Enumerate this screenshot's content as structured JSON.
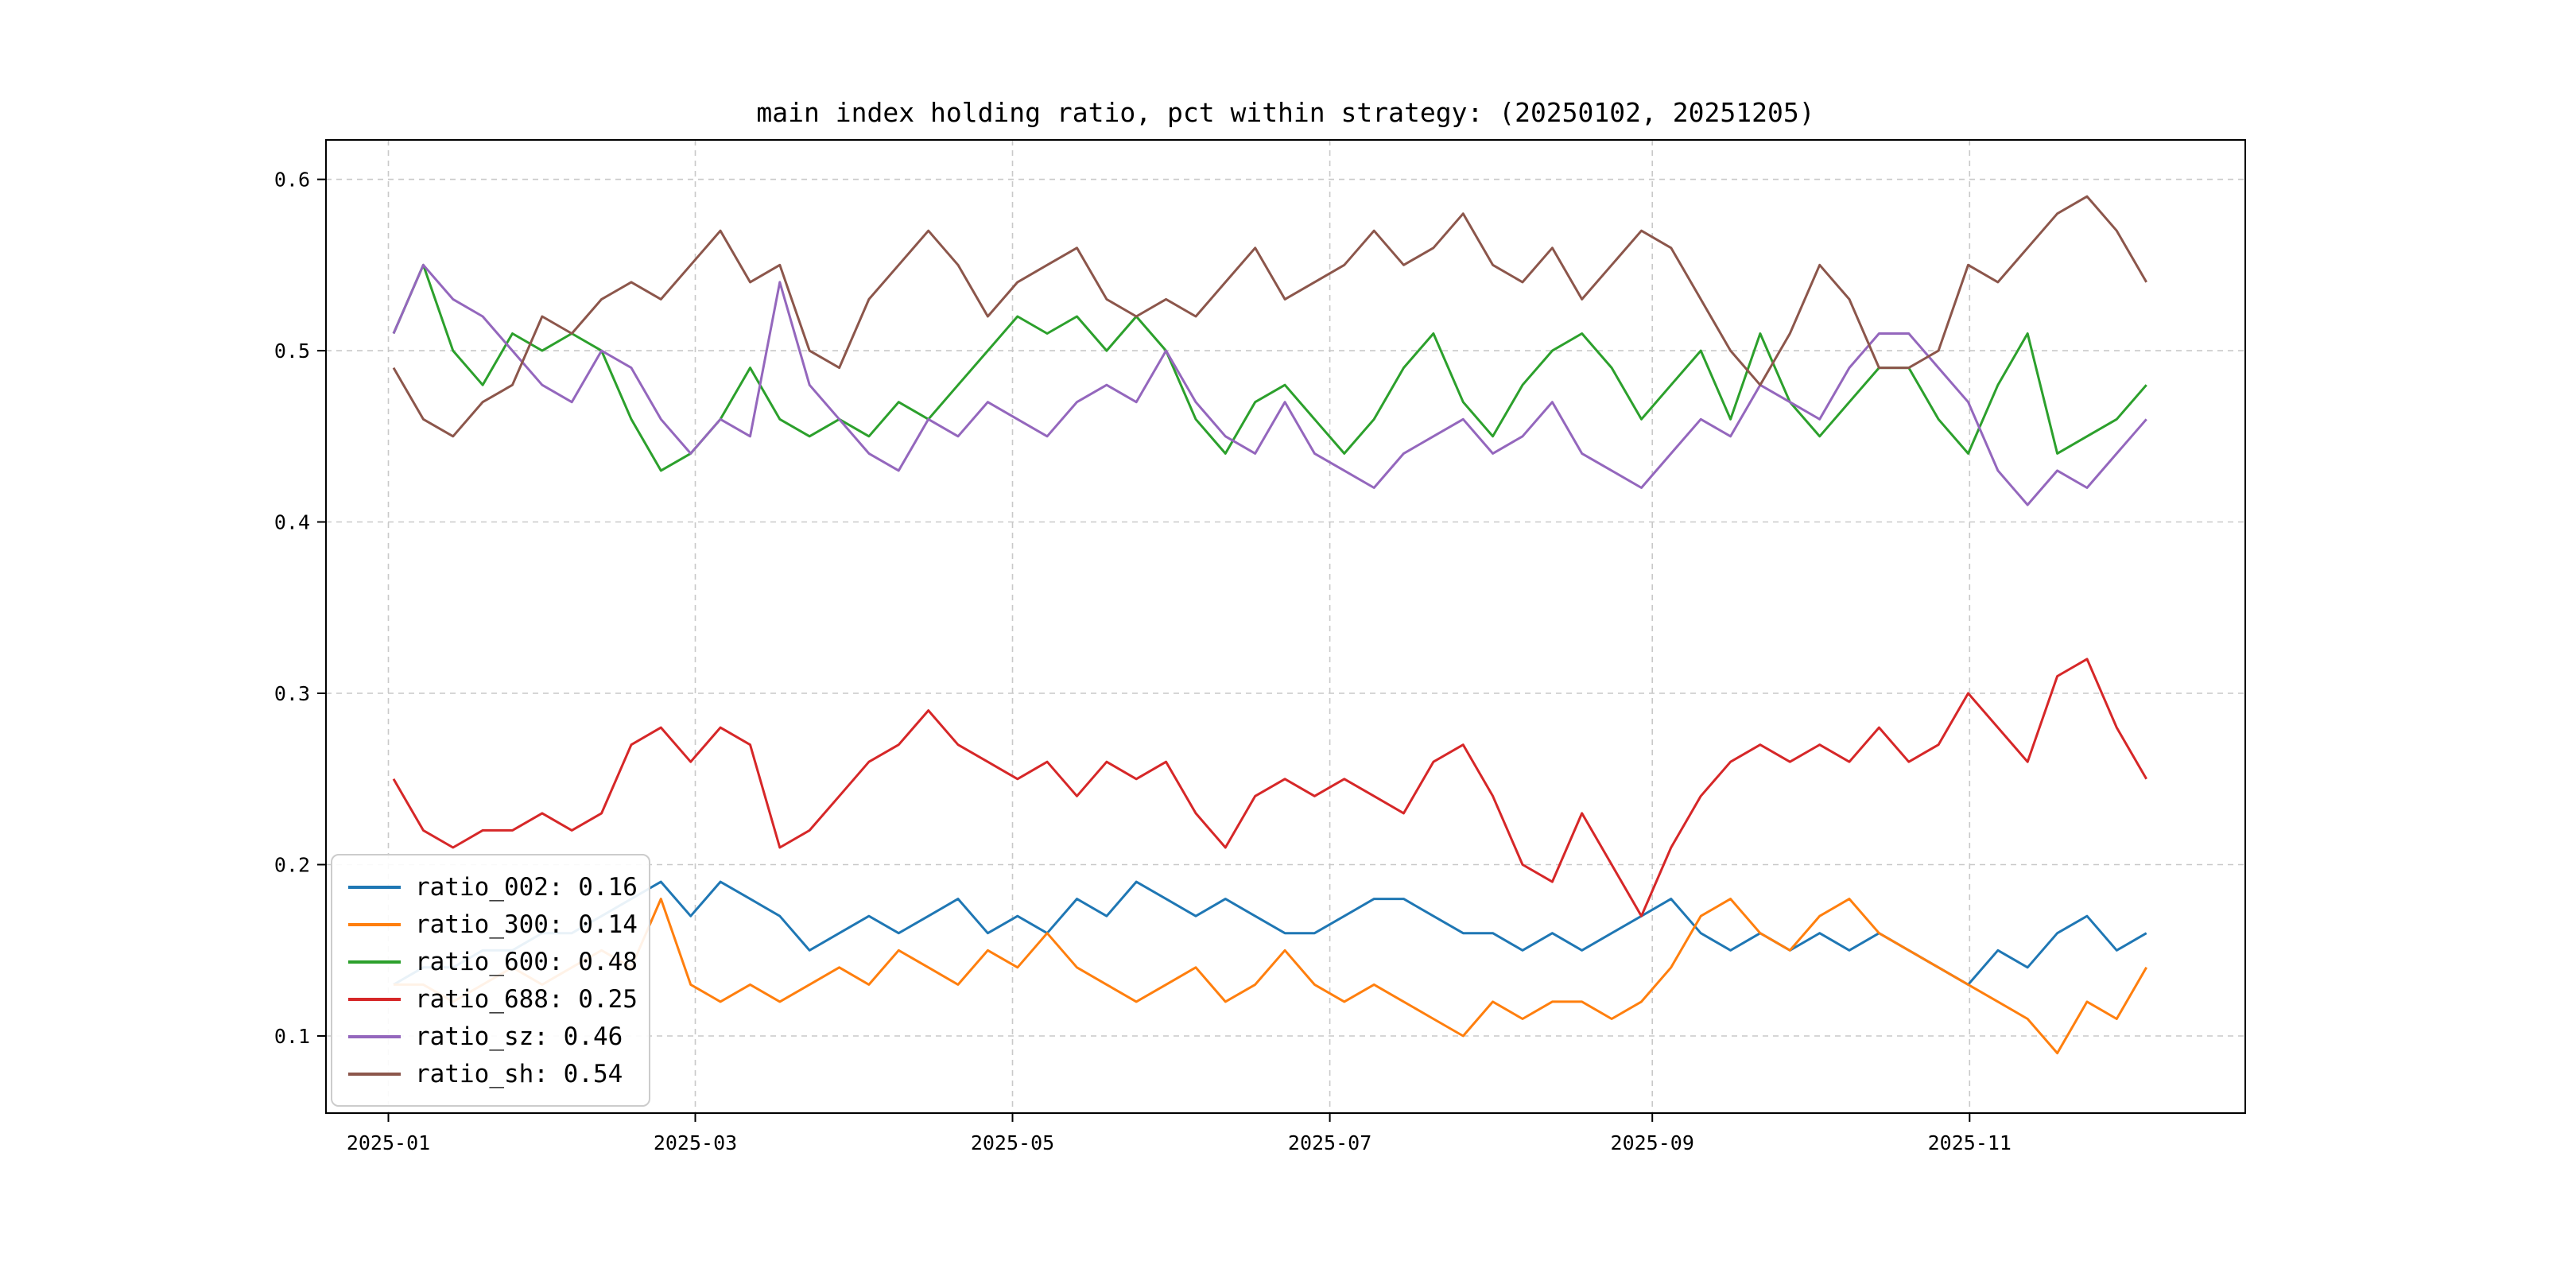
{
  "chart": {
    "title": "main index holding ratio, pct within strategy: (20250102, 20251205)"
  },
  "chart_data": {
    "type": "line",
    "title": "main index holding ratio, pct within strategy: (20250102, 20251205)",
    "xlabel": "",
    "ylabel": "",
    "grid": true,
    "legend_position": "lower left",
    "xlim": [
      -12,
      357
    ],
    "ylim": [
      0.055,
      0.623
    ],
    "x_range_days": [
      1,
      338
    ],
    "x_ticks": [
      {
        "label": "2025-01",
        "day": 0
      },
      {
        "label": "2025-03",
        "day": 59
      },
      {
        "label": "2025-05",
        "day": 120
      },
      {
        "label": "2025-07",
        "day": 181
      },
      {
        "label": "2025-09",
        "day": 243
      },
      {
        "label": "2025-11",
        "day": 304
      }
    ],
    "y_ticks": [
      {
        "label": "0.1",
        "value": 0.1
      },
      {
        "label": "0.2",
        "value": 0.2
      },
      {
        "label": "0.3",
        "value": 0.3
      },
      {
        "label": "0.4",
        "value": 0.4
      },
      {
        "label": "0.5",
        "value": 0.5
      },
      {
        "label": "0.6",
        "value": 0.6
      }
    ],
    "series": [
      {
        "name": "ratio_002",
        "color": "#1f77b4",
        "legend_label": "ratio_002: 0.16",
        "last_value": 0.16,
        "values": [
          0.13,
          0.14,
          0.14,
          0.15,
          0.15,
          0.16,
          0.16,
          0.17,
          0.18,
          0.19,
          0.17,
          0.19,
          0.18,
          0.17,
          0.15,
          0.16,
          0.17,
          0.16,
          0.17,
          0.18,
          0.16,
          0.17,
          0.16,
          0.18,
          0.17,
          0.19,
          0.18,
          0.17,
          0.18,
          0.17,
          0.16,
          0.16,
          0.17,
          0.18,
          0.18,
          0.17,
          0.16,
          0.16,
          0.15,
          0.16,
          0.15,
          0.16,
          0.17,
          0.18,
          0.16,
          0.15,
          0.16,
          0.15,
          0.16,
          0.15,
          0.16,
          0.15,
          0.14,
          0.13,
          0.15,
          0.14,
          0.16,
          0.17,
          0.15,
          0.16
        ]
      },
      {
        "name": "ratio_300",
        "color": "#ff7f0e",
        "legend_label": "ratio_300: 0.14",
        "last_value": 0.14,
        "values": [
          0.13,
          0.13,
          0.12,
          0.13,
          0.14,
          0.13,
          0.14,
          0.15,
          0.14,
          0.18,
          0.13,
          0.12,
          0.13,
          0.12,
          0.13,
          0.14,
          0.13,
          0.15,
          0.14,
          0.13,
          0.15,
          0.14,
          0.16,
          0.14,
          0.13,
          0.12,
          0.13,
          0.14,
          0.12,
          0.13,
          0.15,
          0.13,
          0.12,
          0.13,
          0.12,
          0.11,
          0.1,
          0.12,
          0.11,
          0.12,
          0.12,
          0.11,
          0.12,
          0.14,
          0.17,
          0.18,
          0.16,
          0.15,
          0.17,
          0.18,
          0.16,
          0.15,
          0.14,
          0.13,
          0.12,
          0.11,
          0.09,
          0.12,
          0.11,
          0.14
        ]
      },
      {
        "name": "ratio_600",
        "color": "#2ca02c",
        "legend_label": "ratio_600: 0.48",
        "last_value": 0.48,
        "values": [
          0.51,
          0.55,
          0.5,
          0.48,
          0.51,
          0.5,
          0.51,
          0.5,
          0.46,
          0.43,
          0.44,
          0.46,
          0.49,
          0.46,
          0.45,
          0.46,
          0.45,
          0.47,
          0.46,
          0.48,
          0.5,
          0.52,
          0.51,
          0.52,
          0.5,
          0.52,
          0.5,
          0.46,
          0.44,
          0.47,
          0.48,
          0.46,
          0.44,
          0.46,
          0.49,
          0.51,
          0.47,
          0.45,
          0.48,
          0.5,
          0.51,
          0.49,
          0.46,
          0.48,
          0.5,
          0.46,
          0.51,
          0.47,
          0.45,
          0.47,
          0.49,
          0.49,
          0.46,
          0.44,
          0.48,
          0.51,
          0.44,
          0.45,
          0.46,
          0.48
        ]
      },
      {
        "name": "ratio_688",
        "color": "#d62728",
        "legend_label": "ratio_688: 0.25",
        "last_value": 0.25,
        "values": [
          0.25,
          0.22,
          0.21,
          0.22,
          0.22,
          0.23,
          0.22,
          0.23,
          0.27,
          0.28,
          0.26,
          0.28,
          0.27,
          0.21,
          0.22,
          0.24,
          0.26,
          0.27,
          0.29,
          0.27,
          0.26,
          0.25,
          0.26,
          0.24,
          0.26,
          0.25,
          0.26,
          0.23,
          0.21,
          0.24,
          0.25,
          0.24,
          0.25,
          0.24,
          0.23,
          0.26,
          0.27,
          0.24,
          0.2,
          0.19,
          0.23,
          0.2,
          0.17,
          0.21,
          0.24,
          0.26,
          0.27,
          0.26,
          0.27,
          0.26,
          0.28,
          0.26,
          0.27,
          0.3,
          0.28,
          0.26,
          0.31,
          0.32,
          0.28,
          0.25
        ]
      },
      {
        "name": "ratio_sz",
        "color": "#9467bd",
        "legend_label": "ratio_sz: 0.46",
        "last_value": 0.46,
        "values": [
          0.51,
          0.55,
          0.53,
          0.52,
          0.5,
          0.48,
          0.47,
          0.5,
          0.49,
          0.46,
          0.44,
          0.46,
          0.45,
          0.54,
          0.48,
          0.46,
          0.44,
          0.43,
          0.46,
          0.45,
          0.47,
          0.46,
          0.45,
          0.47,
          0.48,
          0.47,
          0.5,
          0.47,
          0.45,
          0.44,
          0.47,
          0.44,
          0.43,
          0.42,
          0.44,
          0.45,
          0.46,
          0.44,
          0.45,
          0.47,
          0.44,
          0.43,
          0.42,
          0.44,
          0.46,
          0.45,
          0.48,
          0.47,
          0.46,
          0.49,
          0.51,
          0.51,
          0.49,
          0.47,
          0.43,
          0.41,
          0.43,
          0.42,
          0.44,
          0.46
        ]
      },
      {
        "name": "ratio_sh",
        "color": "#8c564b",
        "legend_label": "ratio_sh: 0.54",
        "last_value": 0.54,
        "values": [
          0.49,
          0.46,
          0.45,
          0.47,
          0.48,
          0.52,
          0.51,
          0.53,
          0.54,
          0.53,
          0.55,
          0.57,
          0.54,
          0.55,
          0.5,
          0.49,
          0.53,
          0.55,
          0.57,
          0.55,
          0.52,
          0.54,
          0.55,
          0.56,
          0.53,
          0.52,
          0.53,
          0.52,
          0.54,
          0.56,
          0.53,
          0.54,
          0.55,
          0.57,
          0.55,
          0.56,
          0.58,
          0.55,
          0.54,
          0.56,
          0.53,
          0.55,
          0.57,
          0.56,
          0.53,
          0.5,
          0.48,
          0.51,
          0.55,
          0.53,
          0.49,
          0.49,
          0.5,
          0.55,
          0.54,
          0.56,
          0.58,
          0.59,
          0.57,
          0.54
        ]
      }
    ]
  }
}
